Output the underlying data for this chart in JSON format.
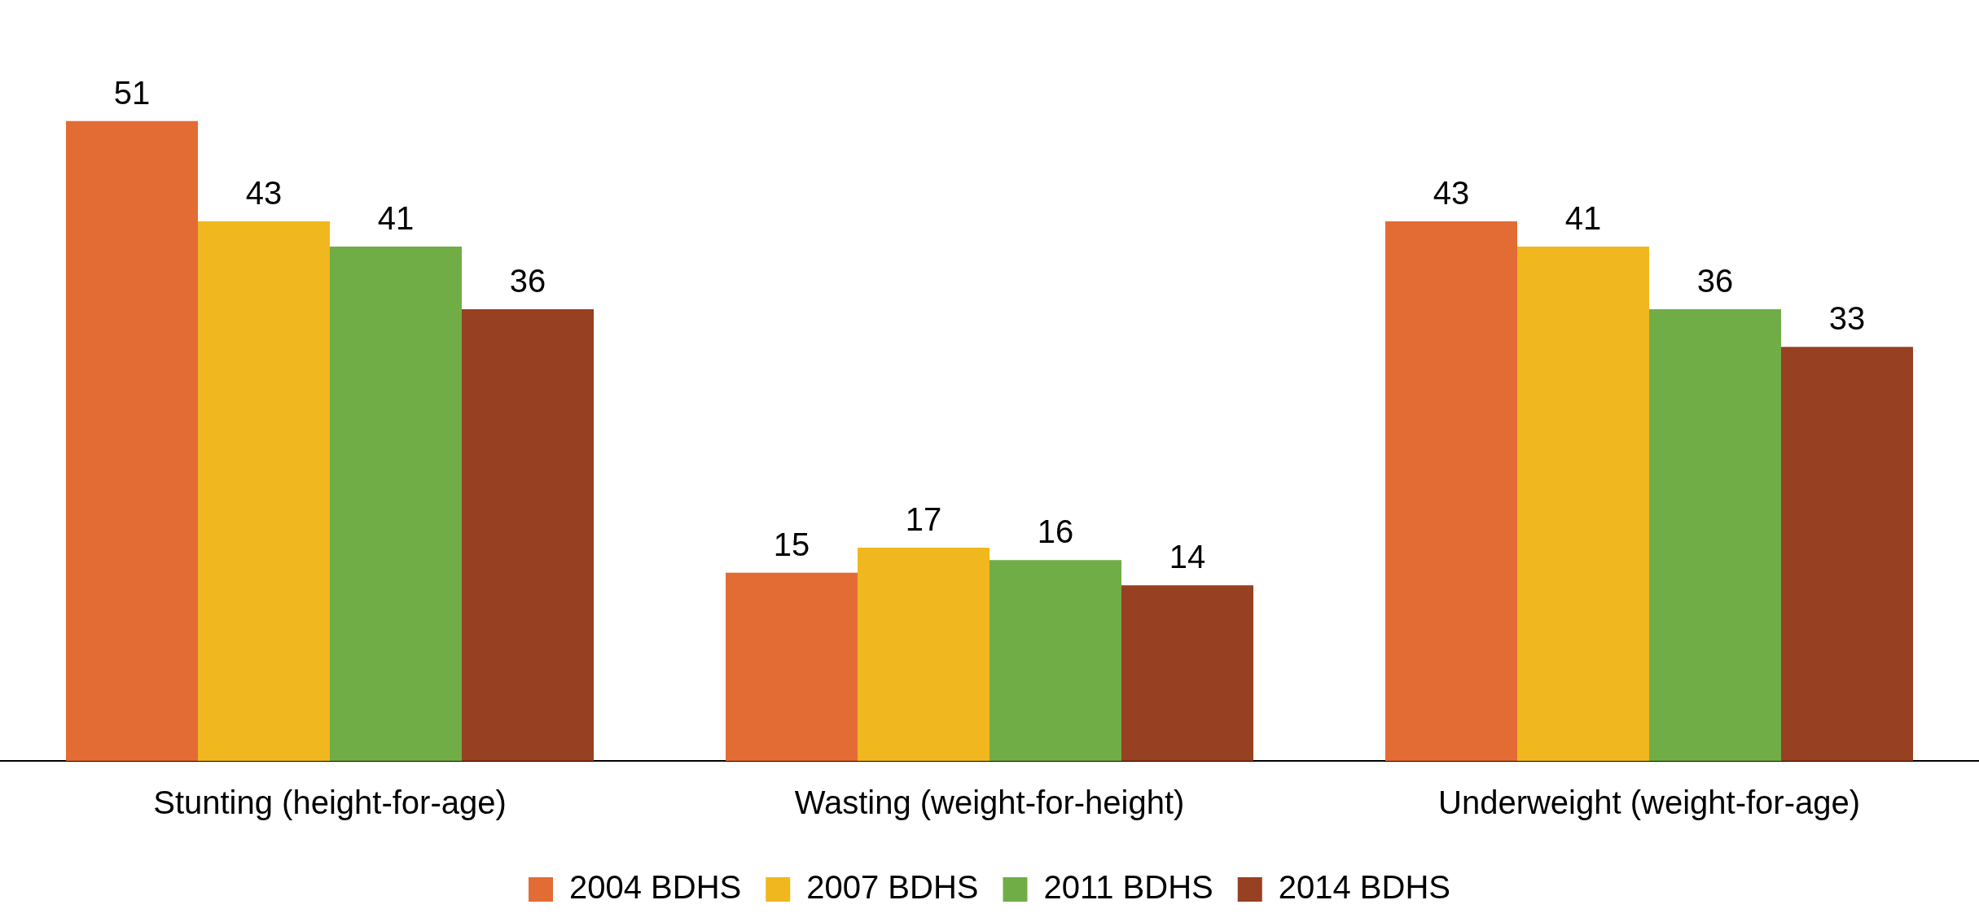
{
  "chart_data": {
    "type": "bar",
    "categories": [
      "Stunting (height-for-age)",
      "Wasting (weight-for-height)",
      "Underweight (weight-for-age)"
    ],
    "series": [
      {
        "name": "2004 BDHS",
        "color": "#e36c35",
        "values": [
          51,
          15,
          43
        ]
      },
      {
        "name": "2007 BDHS",
        "color": "#f0b71e",
        "values": [
          43,
          17,
          41
        ]
      },
      {
        "name": "2011 BDHS",
        "color": "#70ad47",
        "values": [
          41,
          16,
          36
        ]
      },
      {
        "name": "2014 BDHS",
        "color": "#974022",
        "values": [
          36,
          14,
          33
        ]
      }
    ],
    "data_labels": true,
    "legend": "bottom",
    "grid": false
  }
}
